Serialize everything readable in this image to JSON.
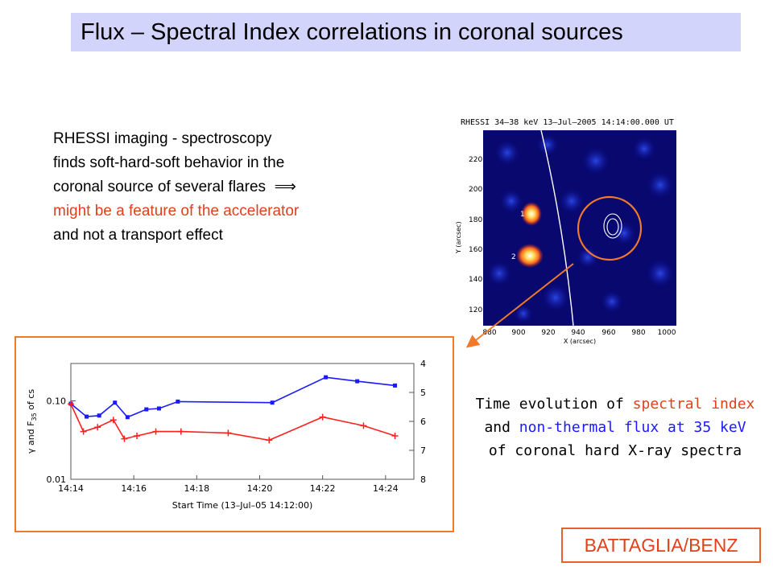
{
  "title": "Flux – Spectral Index correlations in coronal sources",
  "bullet": {
    "line1": "RHESSI imaging - spectroscopy",
    "line2": "finds  soft-hard-soft behavior in the",
    "line3": "coronal source of several flares",
    "implies_symbol": "⟹",
    "line4": "might be a feature of the accelerator",
    "line5": "and not a transport effect"
  },
  "image": {
    "header": "RHESSI 34–38 keV 13–Jul–2005 14:14:00.000 UT",
    "ylabel": "Y (arcsec)",
    "xlabel": "X (arcsec)",
    "yticks": [
      "220",
      "200",
      "180",
      "160",
      "140",
      "120"
    ],
    "xticks": [
      "880",
      "900",
      "920",
      "940",
      "960",
      "980",
      "1000"
    ],
    "source_labels": [
      "1",
      "2"
    ]
  },
  "caption": {
    "line1_pre": "Time evolution of ",
    "line1_red": "spectral index",
    "line2_pre": "and ",
    "line2_blue": "non-thermal flux at 35 keV",
    "line3": "of coronal hard X-ray spectra"
  },
  "signature": "BATTAGLIA/BENZ",
  "colors": {
    "title_bg": "#d2d4fb",
    "red": "#e0401a",
    "blue": "#1a1aff",
    "orange_frame": "#f07a2a"
  },
  "chart_data": {
    "type": "line",
    "xlabel": "Start Time (13–Jul–05 14:12:00)",
    "ylabel_left": "γ and F35 of cs",
    "ylabel_main": "γ and F",
    "ylabel_sub": "35",
    "ylabel_tail": " of cs",
    "x_range": [
      2.0,
      12.9
    ],
    "left_axis": {
      "scale": "log",
      "range": [
        0.01,
        0.3
      ],
      "tick_labels": [
        "0.10",
        "0.01"
      ],
      "tick_values": [
        0.1,
        0.01
      ]
    },
    "right_axis": {
      "scale": "linear",
      "inverted": true,
      "range": [
        4,
        8
      ],
      "tick_labels": [
        "4",
        "5",
        "6",
        "7",
        "8"
      ],
      "tick_values": [
        4,
        5,
        6,
        7,
        8
      ]
    },
    "x_tick_labels": [
      "14:14",
      "14:16",
      "14:18",
      "14:20",
      "14:22",
      "14:24"
    ],
    "x_tick_values": [
      2,
      4,
      6,
      8,
      10,
      12
    ],
    "series": [
      {
        "color": "#1a1aff",
        "axis": "left",
        "marker": "square",
        "x": [
          2.0,
          2.5,
          2.9,
          3.4,
          3.8,
          4.4,
          4.8,
          5.4,
          8.4,
          10.1,
          11.1,
          12.3
        ],
        "y": [
          0.092,
          0.063,
          0.065,
          0.095,
          0.062,
          0.078,
          0.08,
          0.098,
          0.095,
          0.2,
          0.178,
          0.157
        ]
      },
      {
        "color": "#ff2020",
        "axis": "right",
        "marker": "plus",
        "x": [
          2.0,
          2.4,
          2.85,
          3.35,
          3.7,
          4.1,
          4.7,
          5.5,
          7.0,
          8.3,
          10.0,
          11.3,
          12.3
        ],
        "y": [
          5.4,
          6.35,
          6.2,
          5.95,
          6.6,
          6.5,
          6.35,
          6.35,
          6.4,
          6.65,
          5.85,
          6.15,
          6.5
        ]
      }
    ]
  }
}
